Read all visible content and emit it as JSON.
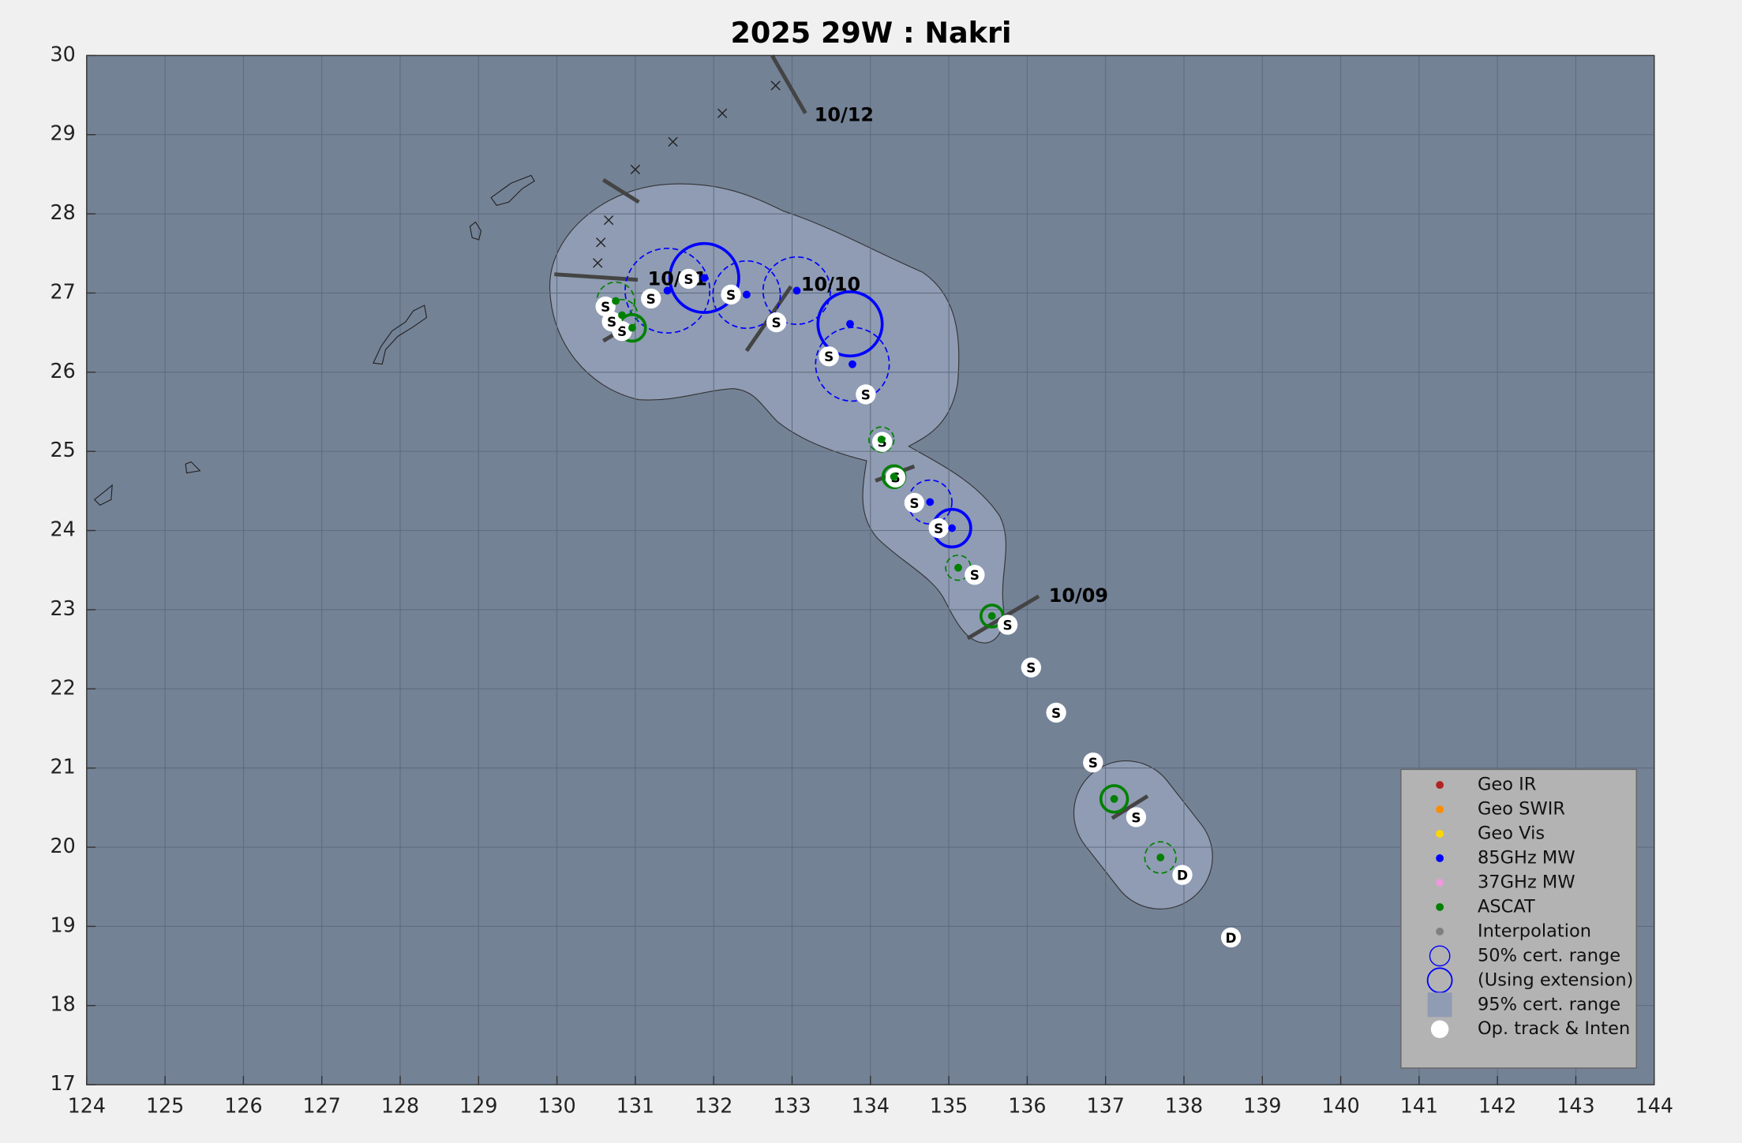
{
  "chart_data": {
    "type": "track",
    "title": "2025  29W :  Nakri",
    "xlim": [
      124,
      144
    ],
    "ylim": [
      17,
      30
    ],
    "xticks": [
      124,
      125,
      126,
      127,
      128,
      129,
      130,
      131,
      132,
      133,
      134,
      135,
      136,
      137,
      138,
      139,
      140,
      141,
      142,
      143,
      144
    ],
    "yticks": [
      17,
      18,
      19,
      20,
      21,
      22,
      23,
      24,
      25,
      26,
      27,
      28,
      29,
      30
    ],
    "grid": true,
    "date_labels": [
      "10/09",
      "10/10",
      "10/11",
      "10/12"
    ],
    "track": {
      "name": "Op. track & Inten",
      "color": "#ffffff",
      "lon": [
        138.6,
        137.98,
        137.39,
        136.84,
        136.37,
        136.05,
        135.75,
        135.33,
        134.87,
        134.56,
        134.32,
        134.15,
        133.94,
        133.47,
        132.8,
        132.22,
        131.68,
        131.2,
        130.83,
        130.7,
        130.62
      ],
      "lat": [
        18.86,
        19.65,
        20.38,
        21.07,
        21.7,
        22.27,
        22.81,
        23.44,
        24.03,
        24.35,
        24.67,
        25.12,
        25.72,
        26.2,
        26.63,
        26.98,
        27.18,
        26.93,
        26.52,
        26.64,
        26.83
      ],
      "labels": [
        "D",
        "D",
        "S",
        "S",
        "S",
        "S",
        "S",
        "S",
        "S",
        "S",
        "S",
        "S",
        "S",
        "S",
        "S",
        "S",
        "S",
        "S",
        "S",
        "S",
        "S"
      ]
    },
    "forecast": {
      "lon": [
        132.79,
        132.11,
        131.48,
        131.0,
        130.66,
        130.56,
        130.52
      ],
      "lat": [
        29.62,
        29.27,
        28.91,
        28.56,
        27.92,
        27.64,
        27.38
      ]
    },
    "series": [
      {
        "name": "Geo IR",
        "color": "#b22222",
        "lon": [],
        "lat": [],
        "radius": [],
        "extension": []
      },
      {
        "name": "Geo SWIR",
        "color": "#ff8c00",
        "lon": [],
        "lat": [],
        "radius": [],
        "extension": []
      },
      {
        "name": "Geo Vis",
        "color": "#ffd700",
        "lon": [],
        "lat": [],
        "radius": [],
        "extension": []
      },
      {
        "name": "85GHz MW",
        "color": "#0000ff",
        "lon": [
          131.88,
          131.41,
          132.42,
          133.06,
          133.74,
          133.77,
          134.76,
          135.04
        ],
        "lat": [
          27.19,
          27.03,
          26.98,
          27.03,
          26.61,
          26.1,
          24.36,
          24.03
        ],
        "radius": [
          0.44,
          0.54,
          0.43,
          0.43,
          0.41,
          0.47,
          0.28,
          0.24
        ],
        "extension": [
          true,
          false,
          false,
          false,
          true,
          false,
          false,
          true
        ]
      },
      {
        "name": "37GHz MW",
        "color": "#ee99dd",
        "lon": [],
        "lat": [],
        "radius": [],
        "extension": []
      },
      {
        "name": "ASCAT",
        "color": "#008000",
        "lon": [
          130.75,
          130.83,
          130.96,
          134.14,
          134.3,
          135.12,
          135.55,
          137.11,
          137.7
        ],
        "lat": [
          26.9,
          26.72,
          26.56,
          25.15,
          24.68,
          23.53,
          22.92,
          20.61,
          19.87
        ],
        "radius": [
          0.24,
          0.2,
          0.17,
          0.16,
          0.14,
          0.16,
          0.14,
          0.17,
          0.2
        ],
        "extension": [
          false,
          false,
          true,
          false,
          true,
          false,
          true,
          true,
          false
        ]
      },
      {
        "name": "Interpolation",
        "color": "#808080",
        "lon": [],
        "lat": [],
        "radius": [],
        "extension": []
      }
    ],
    "legend": {
      "position": "lower right",
      "entries": [
        "50% cert. range",
        "(Using extension)",
        "95% cert. range"
      ]
    },
    "envelope_color": "#8f9cb3",
    "plot_color": "#748296"
  }
}
